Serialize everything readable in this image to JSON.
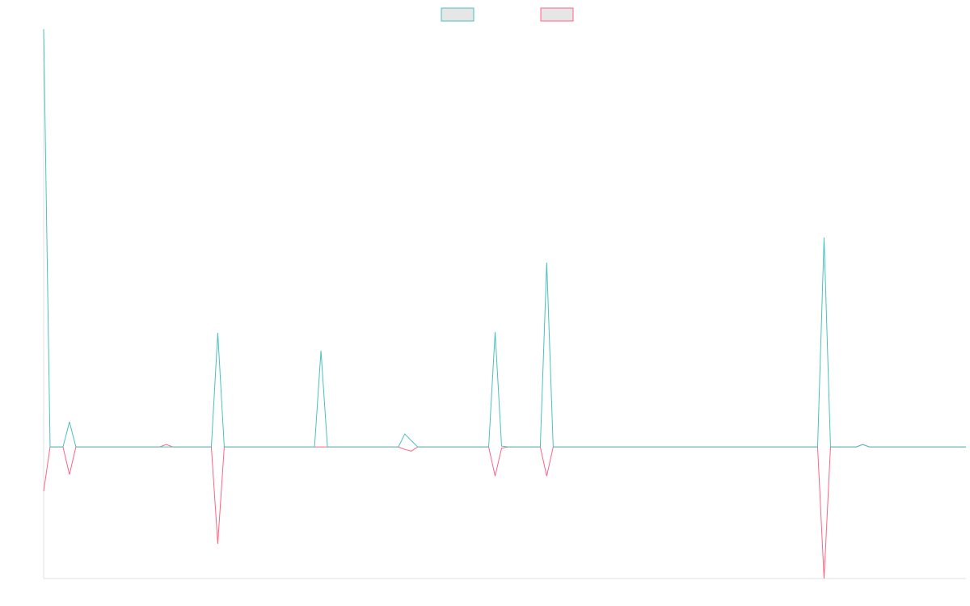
{
  "chart_data": {
    "type": "line",
    "ylim": [
      -31.5,
      100
    ],
    "legend": "top",
    "series": [
      {
        "color": "#4bc0c0",
        "values": [
          100,
          0,
          0,
          0,
          6,
          0,
          0,
          0,
          0,
          0,
          0,
          0,
          0,
          0,
          0,
          0,
          0,
          0,
          0,
          0,
          0,
          0,
          0,
          0,
          0,
          0,
          0,
          27.3,
          0,
          0,
          0,
          0,
          0,
          0,
          0,
          0,
          0,
          0,
          0,
          0,
          0,
          0,
          0,
          23,
          0,
          0,
          0,
          0,
          0,
          0,
          0,
          0,
          0,
          0,
          0,
          0,
          3.1,
          1.5,
          0,
          0,
          0,
          0,
          0,
          0,
          0,
          0,
          0,
          0,
          0,
          0,
          27.5,
          0.2,
          0,
          0,
          0,
          0,
          0,
          0,
          44.1,
          0,
          0,
          0,
          0,
          0,
          0,
          0,
          0,
          0,
          0,
          0,
          0,
          0,
          0,
          0,
          0,
          0,
          0,
          0,
          0,
          0,
          0,
          0,
          0,
          0,
          0,
          0,
          0,
          0,
          0,
          0,
          0,
          0,
          0,
          0,
          0,
          0,
          0,
          0,
          0,
          0,
          0,
          50.1,
          0,
          0,
          0,
          0,
          0,
          0.6,
          0,
          0,
          0,
          0,
          0,
          0,
          0,
          0,
          0,
          0,
          0,
          0,
          0,
          0,
          0,
          0
        ]
      },
      {
        "color": "#ff6384",
        "values": [
          -10.6,
          0,
          0,
          0,
          -6.6,
          0,
          0,
          0,
          0,
          0,
          0,
          0,
          0,
          0,
          0,
          0,
          0,
          0,
          0,
          0.6,
          0,
          0,
          0,
          0,
          0,
          0,
          0,
          -23.2,
          0,
          0,
          0,
          0,
          0,
          0,
          0,
          0,
          0,
          0,
          0,
          0,
          0,
          0,
          0,
          0,
          0,
          0,
          0,
          0,
          0,
          0,
          0,
          0,
          0,
          0,
          0,
          0,
          -0.6,
          -1,
          0,
          0,
          0,
          0,
          0,
          0,
          0,
          0,
          0,
          0,
          0,
          0,
          -7,
          -0.3,
          0,
          0,
          0,
          0,
          0,
          0,
          -7,
          0,
          0,
          0,
          0,
          0,
          0,
          0,
          0,
          0,
          0,
          0,
          0,
          0,
          0,
          0,
          0,
          0,
          0,
          0,
          0,
          0,
          0,
          0,
          0,
          0,
          0,
          0,
          0,
          0,
          0,
          0,
          0,
          0,
          0,
          0,
          0,
          0,
          0,
          0,
          0,
          0,
          0,
          -31.5,
          0,
          0,
          0,
          0,
          0,
          0.6,
          0,
          0,
          0,
          0,
          0,
          0,
          0,
          0,
          0,
          0,
          0,
          0,
          0,
          0,
          0,
          0
        ]
      }
    ]
  }
}
